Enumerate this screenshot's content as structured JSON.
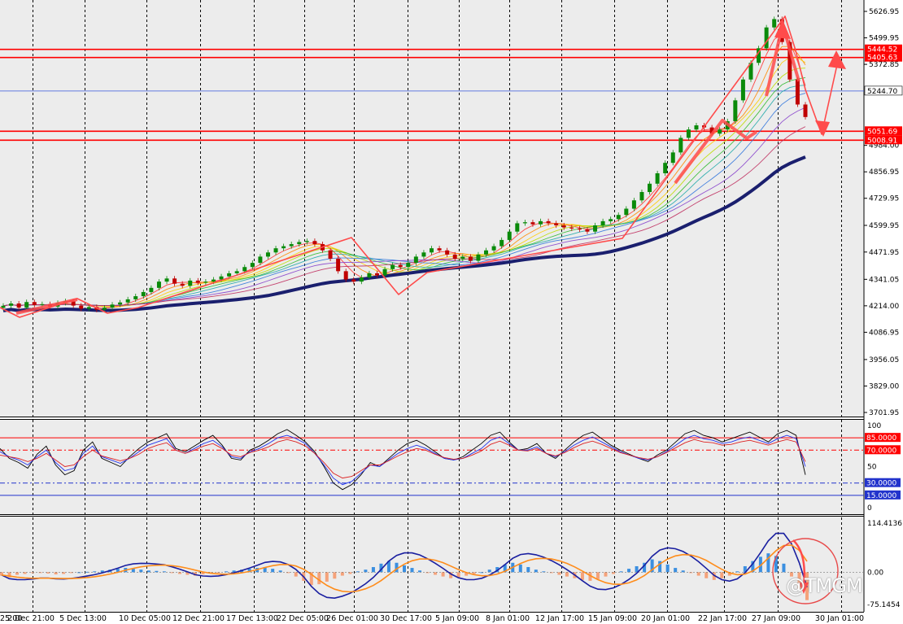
{
  "watermark": "@TMGM",
  "colors": {
    "background": "#ffffff",
    "plot_bg": "#ececec",
    "grid": "#000000",
    "bull_candle": "#0a8a0a",
    "bear_candle": "#c00000",
    "level_line": "#ff0000",
    "ref_line": "#3355dd",
    "slow_ma": "#1a1f6e",
    "annotation": "#ff4b4b",
    "hist_pos": "#3b8fe0",
    "hist_neg": "#f5a27a",
    "macd_line": "#1a1fa0",
    "signal_line": "#ff8c1a"
  },
  "chart_data": [
    {
      "type": "candlestick",
      "panel": "price",
      "y_ticks": [
        "5626.95",
        "5499.95",
        "5372.85",
        "4984.00",
        "4856.95",
        "4729.95",
        "4599.95",
        "4471.95",
        "4341.05",
        "4214.00",
        "4086.95",
        "3956.05",
        "3829.00",
        "3701.95"
      ],
      "ylim": [
        3701.95,
        5626.95
      ],
      "x_ticks": [
        "25:00",
        "2 Dec 21:00",
        "5 Dec 13:00",
        "10 Dec 05:00",
        "12 Dec 21:00",
        "17 Dec 13:00",
        "22 Dec 05:00",
        "26 Dec 01:00",
        "30 Dec 17:00",
        "5 Jan 09:00",
        "8 Jan 01:00",
        "12 Jan 17:00",
        "15 Jan 09:00",
        "20 Jan 01:00",
        "22 Jan 17:00",
        "27 Jan 09:00",
        "30 Jan 01:00"
      ],
      "levels": [
        {
          "label": "5444.52",
          "value": 5444.52,
          "color": "#ff0000"
        },
        {
          "label": "5405.63",
          "value": 5405.63,
          "color": "#ff0000"
        },
        {
          "label": "5244.70",
          "value": 5244.7,
          "color": "#3355dd"
        },
        {
          "label": "5051.69",
          "value": 5051.69,
          "color": "#ff0000"
        },
        {
          "label": "5008.91",
          "value": 5008.91,
          "color": "#ff0000"
        }
      ],
      "close_path": [
        4214,
        4225,
        4205,
        4232,
        4218,
        4222,
        4210,
        4228,
        4236,
        4215,
        4200,
        4208,
        4195,
        4205,
        4220,
        4230,
        4245,
        4260,
        4280,
        4300,
        4330,
        4345,
        4320,
        4310,
        4335,
        4325,
        4330,
        4340,
        4355,
        4370,
        4380,
        4400,
        4420,
        4450,
        4470,
        4490,
        4500,
        4510,
        4520,
        4525,
        4510,
        4480,
        4440,
        4380,
        4340,
        4330,
        4350,
        4370,
        4360,
        4390,
        4410,
        4400,
        4420,
        4450,
        4470,
        4490,
        4480,
        4460,
        4440,
        4450,
        4430,
        4460,
        4480,
        4500,
        4530,
        4570,
        4610,
        4615,
        4605,
        4620,
        4610,
        4600,
        4590,
        4585,
        4580,
        4570,
        4600,
        4620,
        4630,
        4650,
        4680,
        4720,
        4760,
        4800,
        4850,
        4900,
        4950,
        5020,
        5060,
        5080,
        5070,
        5040,
        5060,
        5100,
        5200,
        5300,
        5380,
        5450,
        5550,
        5590,
        5480,
        5300,
        5180,
        5120
      ]
    },
    {
      "type": "line",
      "panel": "oscillator",
      "y_ticks": [
        "100",
        "50",
        "0"
      ],
      "ylim": [
        0,
        100
      ],
      "levels": [
        {
          "label": "85.0000",
          "value": 85,
          "color": "#ff0000"
        },
        {
          "label": "70.0000",
          "value": 70,
          "color": "#ff0000"
        },
        {
          "label": "30.0000",
          "value": 30,
          "color": "#2233cc"
        },
        {
          "label": "15.0000",
          "value": 15,
          "color": "#2233cc"
        }
      ],
      "series": [
        {
          "color": "#000000",
          "values": [
            72,
            60,
            55,
            48,
            65,
            75,
            52,
            40,
            45,
            70,
            80,
            60,
            55,
            50,
            62,
            72,
            80,
            85,
            90,
            72,
            68,
            75,
            82,
            88,
            76,
            60,
            58,
            70,
            75,
            82,
            90,
            95,
            88,
            80,
            68,
            50,
            30,
            22,
            28,
            40,
            55,
            50,
            60,
            70,
            78,
            82,
            76,
            68,
            60,
            58,
            62,
            70,
            78,
            88,
            92,
            80,
            70,
            72,
            78,
            66,
            60,
            70,
            80,
            88,
            92,
            84,
            76,
            70,
            65,
            60,
            56,
            64,
            70,
            80,
            90,
            94,
            88,
            85,
            80,
            84,
            88,
            92,
            86,
            80,
            90,
            94,
            88,
            40
          ]
        },
        {
          "color": "#2233ee",
          "values": [
            68,
            62,
            58,
            52,
            62,
            70,
            55,
            45,
            48,
            66,
            75,
            62,
            58,
            54,
            60,
            68,
            76,
            80,
            84,
            70,
            66,
            72,
            78,
            82,
            74,
            62,
            60,
            68,
            72,
            78,
            85,
            88,
            84,
            78,
            66,
            52,
            36,
            28,
            32,
            42,
            52,
            50,
            58,
            66,
            72,
            76,
            72,
            66,
            60,
            58,
            60,
            66,
            72,
            82,
            86,
            78,
            70,
            70,
            74,
            66,
            62,
            68,
            76,
            82,
            86,
            80,
            74,
            68,
            64,
            60,
            58,
            62,
            68,
            76,
            84,
            88,
            84,
            82,
            78,
            80,
            84,
            86,
            82,
            78,
            84,
            88,
            84,
            50
          ]
        },
        {
          "color": "#dd2222",
          "values": [
            64,
            62,
            60,
            56,
            60,
            66,
            58,
            50,
            52,
            62,
            70,
            63,
            60,
            57,
            60,
            65,
            72,
            76,
            79,
            70,
            66,
            70,
            75,
            78,
            72,
            64,
            62,
            67,
            70,
            74,
            80,
            83,
            80,
            75,
            66,
            55,
            42,
            36,
            38,
            45,
            52,
            52,
            57,
            63,
            68,
            72,
            70,
            65,
            61,
            59,
            60,
            64,
            69,
            77,
            81,
            76,
            70,
            69,
            72,
            66,
            63,
            67,
            73,
            78,
            81,
            77,
            72,
            67,
            64,
            61,
            59,
            62,
            67,
            73,
            79,
            83,
            80,
            79,
            76,
            77,
            80,
            82,
            79,
            76,
            80,
            83,
            80,
            56
          ]
        }
      ]
    },
    {
      "type": "bar",
      "panel": "histogram",
      "y_ticks": [
        "114.4136",
        "0.00",
        "-75.1454"
      ],
      "ylim": [
        -75.1454,
        114.4136
      ],
      "values": [
        -8,
        -12,
        -6,
        -4,
        -2,
        -1,
        -3,
        -5,
        -4,
        -2,
        0,
        1,
        2,
        4,
        6,
        8,
        10,
        8,
        6,
        4,
        3,
        2,
        -2,
        -4,
        -6,
        -8,
        -5,
        -3,
        -1,
        2,
        4,
        6,
        8,
        10,
        12,
        8,
        4,
        -2,
        -10,
        -20,
        -30,
        -28,
        -22,
        -15,
        -8,
        -4,
        2,
        6,
        12,
        20,
        26,
        22,
        16,
        10,
        4,
        -2,
        -6,
        -10,
        -14,
        -12,
        -8,
        -4,
        0,
        6,
        12,
        18,
        22,
        18,
        12,
        6,
        2,
        -2,
        -6,
        -10,
        -14,
        -18,
        -20,
        -16,
        -10,
        -4,
        2,
        8,
        14,
        22,
        30,
        26,
        18,
        10,
        4,
        -2,
        -8,
        -14,
        -18,
        -14,
        -8,
        2,
        14,
        26,
        36,
        44,
        38,
        20,
        -10,
        -40,
        -65
      ]
    }
  ]
}
